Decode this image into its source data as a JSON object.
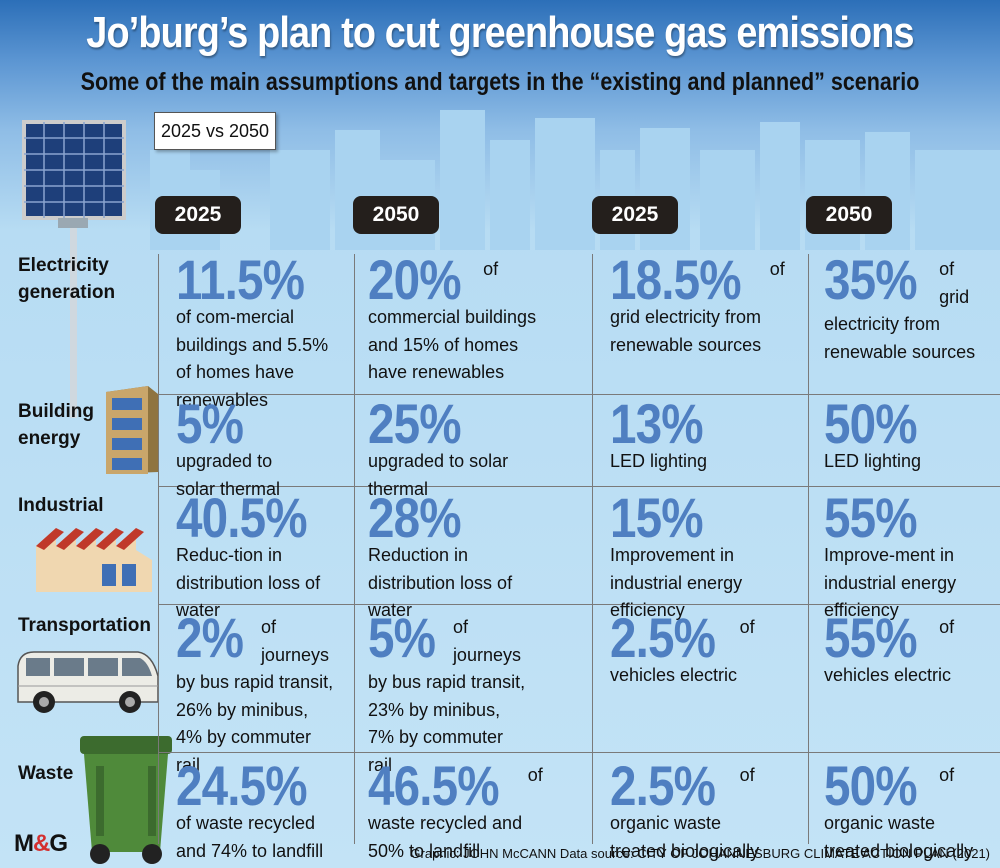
{
  "title": "Jo’burg’s plan to cut greenhouse gas emissions",
  "subtitle": "Some of the main assumptions and targets in the “existing and planned” scenario",
  "badge": "2025 vs 2050",
  "years": [
    "2025",
    "2050",
    "2025",
    "2050"
  ],
  "rows": [
    {
      "label": "Electricity generation",
      "cells": [
        {
          "pct": "11.5%",
          "text": "of com-mercial buildings and 5.5% of homes have renewables"
        },
        {
          "pct": "20%",
          "text": "of commercial buildings and 15% of homes have renewables"
        },
        {
          "pct": "18.5%",
          "text": "of grid electricity from renewable sources"
        },
        {
          "pct": "35%",
          "text": "of grid electricity from renewable sources"
        }
      ]
    },
    {
      "label": "Building energy",
      "cells": [
        {
          "pct": "5%",
          "text": "upgraded to solar thermal"
        },
        {
          "pct": "25%",
          "text": "upgraded to solar thermal"
        },
        {
          "pct": "13%",
          "text": "LED lighting"
        },
        {
          "pct": "50%",
          "text": "LED lighting"
        }
      ]
    },
    {
      "label": "Industrial",
      "cells": [
        {
          "pct": "40.5%",
          "text": "Reduc-tion in distribution loss of water"
        },
        {
          "pct": "28%",
          "text": "Reduction in distribution loss of water"
        },
        {
          "pct": "15%",
          "text": "Improvement in industrial energy efficiency"
        },
        {
          "pct": "55%",
          "text": "Improve-ment in industrial energy efficiency"
        }
      ]
    },
    {
      "label": "Transportation",
      "cells": [
        {
          "pct": "2%",
          "text": "of journeys by bus rapid transit, 26% by minibus, 4% by commuter rail"
        },
        {
          "pct": "5%",
          "text": "of journeys by bus rapid transit, 23% by minibus, 7% by commuter rail"
        },
        {
          "pct": "2.5%",
          "text": "of vehicles electric"
        },
        {
          "pct": "55%",
          "text": "of vehicles electric"
        }
      ]
    },
    {
      "label": "Waste",
      "cells": [
        {
          "pct": "24.5%",
          "text": "of waste recycled and 74% to landfill"
        },
        {
          "pct": "46.5%",
          "text": "of waste recycled and 50% to landfill"
        },
        {
          "pct": "2.5%",
          "text": "of organic waste treated biologically"
        },
        {
          "pct": "50%",
          "text": "of organic waste treated biologically"
        }
      ]
    }
  ],
  "footer": "Graphic: JOHN McCANN  Data source: CITY OF JOHANNESBURG CLIMATE ACTION PLAN (2021)",
  "logo": {
    "left": "M",
    "amp": "&",
    "right": "G"
  },
  "colors": {
    "accent": "#4f7fc1",
    "year_box": "#241f1c",
    "sky": "#c3e3f6"
  },
  "icons": [
    "solar-panel-icon",
    "office-building-icon",
    "factory-icon",
    "minibus-icon",
    "wheelie-bin-icon"
  ]
}
